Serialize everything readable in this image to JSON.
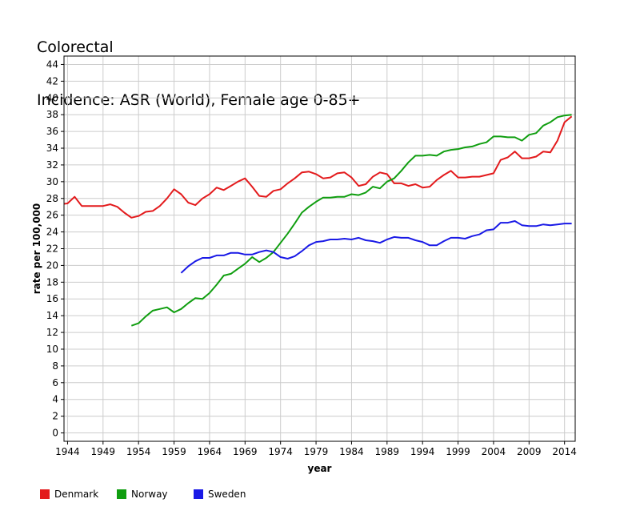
{
  "title_line1": "Colorectal",
  "title_line2": "Incidence: ASR (World), Female age 0-85+",
  "chart_data": {
    "type": "line",
    "xlabel": "year",
    "ylabel": "rate per 100,000",
    "xlim": [
      1943.5,
      2015.5
    ],
    "ylim": [
      -1,
      45
    ],
    "x_ticks": [
      1944,
      1949,
      1954,
      1959,
      1964,
      1969,
      1974,
      1979,
      1984,
      1989,
      1994,
      1999,
      2004,
      2009,
      2014
    ],
    "y_ticks": [
      0,
      2,
      4,
      6,
      8,
      10,
      12,
      14,
      16,
      18,
      20,
      22,
      24,
      26,
      28,
      30,
      32,
      34,
      36,
      38,
      40,
      42,
      44
    ],
    "grid": true,
    "legend_position": "bottom-left",
    "series": [
      {
        "name": "Denmark",
        "color": "#e31a1c",
        "x": [
          1943,
          1944,
          1945,
          1946,
          1947,
          1948,
          1949,
          1950,
          1951,
          1952,
          1953,
          1954,
          1955,
          1956,
          1957,
          1958,
          1959,
          1960,
          1961,
          1962,
          1963,
          1964,
          1965,
          1966,
          1967,
          1968,
          1969,
          1970,
          1971,
          1972,
          1973,
          1974,
          1975,
          1976,
          1977,
          1978,
          1979,
          1980,
          1981,
          1982,
          1983,
          1984,
          1985,
          1986,
          1987,
          1988,
          1989,
          1990,
          1991,
          1992,
          1993,
          1994,
          1995,
          1996,
          1997,
          1998,
          1999,
          2000,
          2001,
          2002,
          2003,
          2004,
          2005,
          2006,
          2007,
          2008,
          2009,
          2010,
          2011,
          2012,
          2013,
          2014,
          2015
        ],
        "values": [
          27.3,
          27.4,
          28.2,
          27.1,
          27.1,
          27.1,
          27.1,
          27.3,
          27.0,
          26.3,
          25.7,
          25.9,
          26.4,
          26.5,
          27.1,
          28.0,
          29.1,
          28.5,
          27.5,
          27.2,
          28.0,
          28.5,
          29.3,
          29.0,
          29.5,
          30.0,
          30.4,
          29.4,
          28.3,
          28.2,
          28.9,
          29.1,
          29.8,
          30.4,
          31.1,
          31.2,
          30.9,
          30.4,
          30.5,
          31.0,
          31.1,
          30.5,
          29.5,
          29.7,
          30.6,
          31.1,
          30.9,
          29.8,
          29.8,
          29.5,
          29.7,
          29.3,
          29.4,
          30.2,
          30.8,
          31.3,
          30.5,
          30.5,
          30.6,
          30.6,
          30.8,
          31.0,
          32.6,
          32.9,
          33.6,
          32.8,
          32.8,
          33.0,
          33.6,
          33.5,
          34.9,
          37.1,
          37.8
        ]
      },
      {
        "name": "Norway",
        "color": "#109e10",
        "x": [
          1953,
          1954,
          1955,
          1956,
          1957,
          1958,
          1959,
          1960,
          1961,
          1962,
          1963,
          1964,
          1965,
          1966,
          1967,
          1968,
          1969,
          1970,
          1971,
          1972,
          1973,
          1974,
          1975,
          1976,
          1977,
          1978,
          1979,
          1980,
          1981,
          1982,
          1983,
          1984,
          1985,
          1986,
          1987,
          1988,
          1989,
          1990,
          1991,
          1992,
          1993,
          1994,
          1995,
          1996,
          1997,
          1998,
          1999,
          2000,
          2001,
          2002,
          2003,
          2004,
          2005,
          2006,
          2007,
          2008,
          2009,
          2010,
          2011,
          2012,
          2013,
          2014,
          2015
        ],
        "values": [
          12.8,
          13.1,
          13.9,
          14.6,
          14.8,
          15.0,
          14.4,
          14.8,
          15.5,
          16.1,
          16.0,
          16.7,
          17.7,
          18.8,
          19.0,
          19.6,
          20.2,
          21.0,
          20.4,
          20.9,
          21.6,
          22.7,
          23.8,
          25.0,
          26.3,
          27.0,
          27.6,
          28.1,
          28.1,
          28.2,
          28.2,
          28.5,
          28.4,
          28.7,
          29.4,
          29.2,
          30.0,
          30.4,
          31.3,
          32.3,
          33.1,
          33.1,
          33.2,
          33.1,
          33.6,
          33.8,
          33.9,
          34.1,
          34.2,
          34.5,
          34.7,
          35.4,
          35.4,
          35.3,
          35.3,
          34.9,
          35.6,
          35.8,
          36.7,
          37.1,
          37.7,
          37.9,
          38.0
        ]
      },
      {
        "name": "Sweden",
        "color": "#1a1ae6",
        "x": [
          1960,
          1961,
          1962,
          1963,
          1964,
          1965,
          1966,
          1967,
          1968,
          1969,
          1970,
          1971,
          1972,
          1973,
          1974,
          1975,
          1976,
          1977,
          1978,
          1979,
          1980,
          1981,
          1982,
          1983,
          1984,
          1985,
          1986,
          1987,
          1988,
          1989,
          1990,
          1991,
          1992,
          1993,
          1994,
          1995,
          1996,
          1997,
          1998,
          1999,
          2000,
          2001,
          2002,
          2003,
          2004,
          2005,
          2006,
          2007,
          2008,
          2009,
          2010,
          2011,
          2012,
          2013,
          2014,
          2015
        ],
        "values": [
          19.1,
          19.9,
          20.5,
          20.9,
          20.9,
          21.2,
          21.2,
          21.5,
          21.5,
          21.3,
          21.3,
          21.6,
          21.8,
          21.6,
          21.0,
          20.8,
          21.1,
          21.7,
          22.4,
          22.8,
          22.9,
          23.1,
          23.1,
          23.2,
          23.1,
          23.3,
          23.0,
          22.9,
          22.7,
          23.1,
          23.4,
          23.3,
          23.3,
          23.0,
          22.8,
          22.4,
          22.4,
          22.9,
          23.3,
          23.3,
          23.2,
          23.5,
          23.7,
          24.2,
          24.3,
          25.1,
          25.1,
          25.3,
          24.8,
          24.7,
          24.7,
          24.9,
          24.8,
          24.9,
          25.0,
          25.0
        ]
      }
    ]
  }
}
